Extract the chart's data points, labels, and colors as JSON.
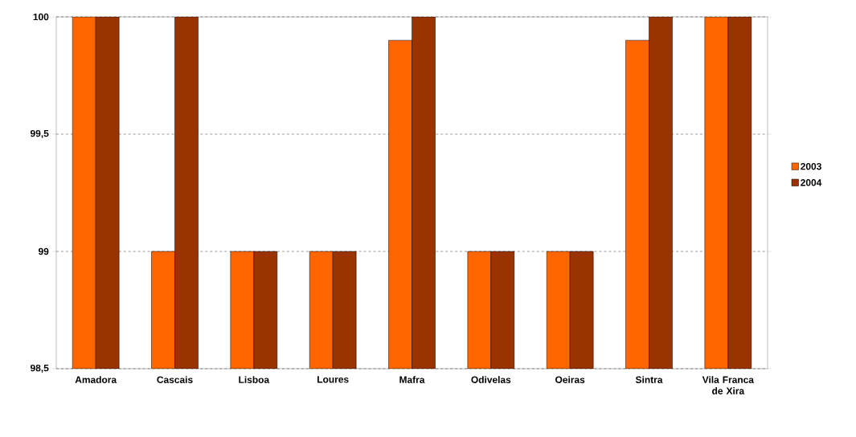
{
  "chart_data": {
    "type": "bar",
    "categories": [
      "Amadora",
      "Cascais",
      "Lisboa",
      "Loures",
      "Mafra",
      "Odivelas",
      "Oeiras",
      "Sintra",
      "Vila Franca de Xira"
    ],
    "series": [
      {
        "name": "2003",
        "color": "#ff6600",
        "values": [
          100,
          99,
          99,
          99,
          99.9,
          99,
          99,
          99.9,
          100
        ]
      },
      {
        "name": "2004",
        "color": "#993300",
        "values": [
          100,
          100,
          99,
          99,
          100,
          99,
          99,
          100,
          100
        ]
      }
    ],
    "ylim": [
      98.5,
      100
    ],
    "yticks": [
      {
        "value": 98.5,
        "label": "98,5"
      },
      99,
      {
        "value": 99.5,
        "label": "99,5"
      },
      100
    ],
    "grid": "y",
    "legend": "right"
  }
}
